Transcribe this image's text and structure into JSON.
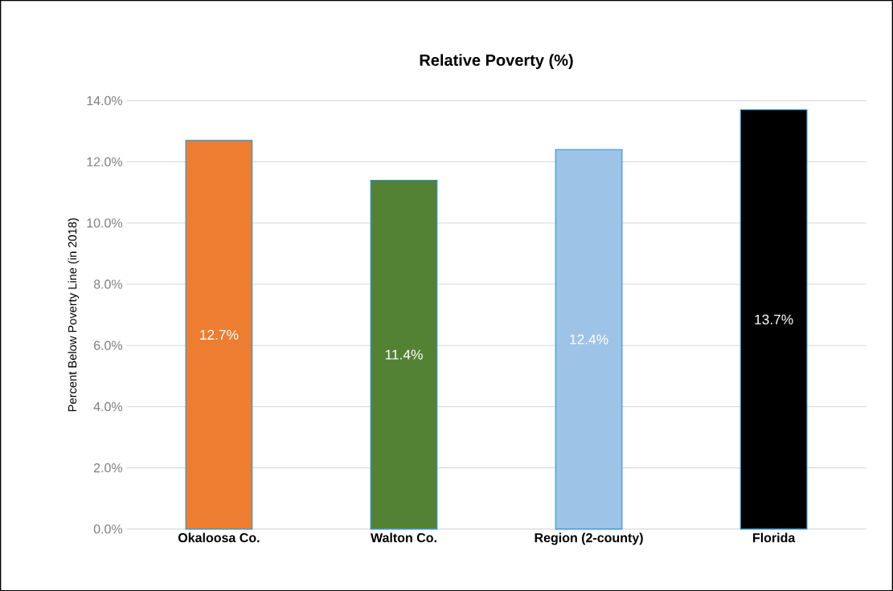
{
  "chart_data": {
    "type": "bar",
    "title": "Relative Poverty (%)",
    "ylabel": "Percent Below Poverty Line (in 2018)",
    "categories": [
      "Okaloosa Co.",
      "Walton Co.",
      "Region (2-county)",
      "Florida"
    ],
    "values": [
      12.7,
      11.4,
      12.4,
      13.7
    ],
    "colors": [
      "#ed7d31",
      "#548235",
      "#9dc3e6",
      "#000000"
    ],
    "value_labels": [
      "12.7%",
      "11.4%",
      "12.4%",
      "13.7%"
    ],
    "ylim": [
      0,
      14
    ],
    "yticks": [
      {
        "value": 0,
        "label": "0.0%"
      },
      {
        "value": 2,
        "label": "2.0%"
      },
      {
        "value": 4,
        "label": "4.0%"
      },
      {
        "value": 6,
        "label": "6.0%"
      },
      {
        "value": 8,
        "label": "8.0%"
      },
      {
        "value": 10,
        "label": "10.0%"
      },
      {
        "value": 12,
        "label": "12.0%"
      },
      {
        "value": 14,
        "label": "14.0%"
      }
    ],
    "grid": "y"
  }
}
